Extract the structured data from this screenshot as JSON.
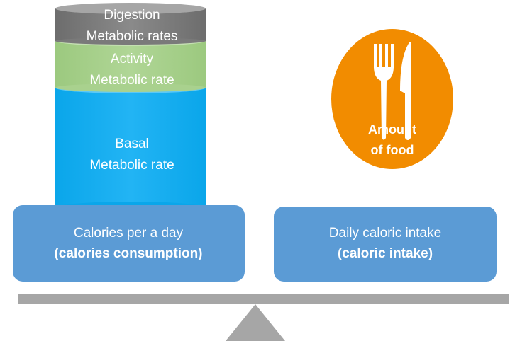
{
  "cylinder": {
    "segments": [
      {
        "lines": [
          "Digestion",
          "Metabolic rates"
        ]
      },
      {
        "lines": [
          "Activity",
          "Metabolic rate"
        ]
      },
      {
        "lines": [
          "Basal",
          "Metabolic rate"
        ]
      }
    ]
  },
  "boxes": [
    {
      "line": "Calories per a day",
      "bold_line": "(calories consumption)"
    },
    {
      "line": "Daily caloric intake",
      "bold_line": "(caloric intake)"
    }
  ],
  "plate": {
    "lines": [
      "Amount",
      "of food"
    ]
  }
}
